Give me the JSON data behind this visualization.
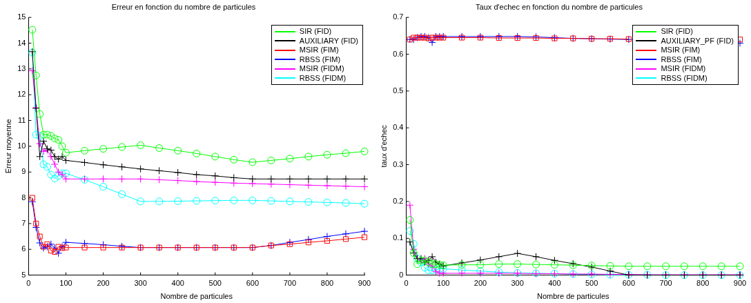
{
  "chart_data": [
    {
      "type": "line",
      "title": "Erreur en fonction du nombre de particules",
      "xlabel": "Nombre de particules",
      "ylabel": "Erreur moyenne",
      "x": [
        10,
        20,
        30,
        40,
        50,
        60,
        70,
        80,
        90,
        100,
        150,
        200,
        250,
        300,
        350,
        400,
        450,
        500,
        550,
        600,
        650,
        700,
        750,
        800,
        850,
        900
      ],
      "xlim": [
        0,
        900
      ],
      "xticks": [
        0,
        100,
        200,
        300,
        400,
        500,
        600,
        700,
        800,
        900
      ],
      "ylim": [
        5,
        15
      ],
      "yticks": [
        5,
        6,
        7,
        8,
        9,
        10,
        11,
        12,
        13,
        14,
        15
      ],
      "grid": false,
      "legend": "top right",
      "line_style": "solid",
      "series": [
        {
          "name": "SIR (FID)",
          "color": "#00ff00",
          "marker": "circle",
          "values": [
            14.52,
            12.75,
            11.25,
            10.45,
            10.45,
            10.4,
            10.3,
            10.25,
            10.0,
            9.75,
            9.83,
            9.9,
            9.97,
            10.04,
            9.93,
            9.83,
            9.72,
            9.6,
            9.48,
            9.38,
            9.45,
            9.52,
            9.6,
            9.67,
            9.73,
            9.8
          ]
        },
        {
          "name": "AUXILIARY (FID)",
          "color": "#000000",
          "marker": "cross",
          "values": [
            13.67,
            11.47,
            9.6,
            10.2,
            9.9,
            9.85,
            9.6,
            9.5,
            9.6,
            9.45,
            9.37,
            9.28,
            9.2,
            9.12,
            9.05,
            8.98,
            8.9,
            8.85,
            8.78,
            8.73,
            8.73,
            8.73,
            8.73,
            8.73,
            8.73,
            8.73
          ]
        },
        {
          "name": "MSIR (FIM)",
          "color": "#ff0000",
          "marker": "square",
          "values": [
            8.0,
            7.0,
            6.5,
            6.1,
            6.2,
            5.95,
            5.9,
            6.1,
            6.05,
            6.07,
            6.07,
            6.07,
            6.07,
            6.07,
            6.07,
            6.07,
            6.07,
            6.07,
            6.07,
            6.07,
            6.15,
            6.2,
            6.27,
            6.33,
            6.4,
            6.47
          ]
        },
        {
          "name": "RBSS (FIM)",
          "color": "#0000ff",
          "marker": "cross",
          "values": [
            7.85,
            6.85,
            6.25,
            6.05,
            6.1,
            6.2,
            6.05,
            5.85,
            6.1,
            6.27,
            6.23,
            6.18,
            6.12,
            6.07,
            6.07,
            6.07,
            6.07,
            6.07,
            6.07,
            6.07,
            6.15,
            6.27,
            6.38,
            6.5,
            6.6,
            6.7
          ]
        },
        {
          "name": "MSIR (FIDM)",
          "color": "#ff00ff",
          "marker": "cross",
          "values": [
            12.93,
            11.5,
            10.1,
            9.8,
            9.85,
            9.6,
            9.3,
            9.0,
            8.9,
            8.73,
            8.73,
            8.73,
            8.73,
            8.73,
            8.7,
            8.67,
            8.63,
            8.6,
            8.57,
            8.55,
            8.53,
            8.51,
            8.49,
            8.47,
            8.45,
            8.43
          ]
        },
        {
          "name": "RBSS (FIDM)",
          "color": "#00ffff",
          "marker": "circle",
          "values": [
            13.63,
            10.45,
            10.4,
            9.3,
            9.2,
            8.9,
            8.75,
            8.85,
            8.95,
            8.95,
            8.7,
            8.43,
            8.14,
            7.86,
            7.86,
            7.87,
            7.88,
            7.89,
            7.9,
            7.9,
            7.88,
            7.86,
            7.84,
            7.82,
            7.8,
            7.77
          ]
        }
      ]
    },
    {
      "type": "line",
      "title": "Taux d'echec en fonction du nombre de particules",
      "xlabel": "Nombre de particules",
      "ylabel": "taux d'echec",
      "x": [
        10,
        20,
        30,
        40,
        50,
        60,
        70,
        80,
        90,
        100,
        150,
        200,
        250,
        300,
        350,
        400,
        450,
        500,
        550,
        600,
        650,
        700,
        750,
        800,
        850,
        900
      ],
      "xlim": [
        0,
        900
      ],
      "xticks": [
        0,
        100,
        200,
        300,
        400,
        500,
        600,
        700,
        800,
        900
      ],
      "ylim": [
        0,
        0.7
      ],
      "yticks": [
        0,
        0.1,
        0.2,
        0.3,
        0.4,
        0.5,
        0.6,
        0.7
      ],
      "grid": false,
      "legend": "top right",
      "line_style": "solid",
      "series": [
        {
          "name": "SIR (FID)",
          "color": "#00ff00",
          "marker": "circle",
          "values": [
            0.15,
            0.06,
            0.03,
            0.04,
            0.04,
            0.035,
            0.03,
            0.03,
            0.028,
            0.027,
            0.028,
            0.028,
            0.03,
            0.03,
            0.029,
            0.028,
            0.027,
            0.026,
            0.025,
            0.024,
            0.024,
            0.024,
            0.024,
            0.024,
            0.024,
            0.024
          ]
        },
        {
          "name": "AUXILIARY_PF (FID)",
          "color": "#000000",
          "marker": "cross",
          "values": [
            0.09,
            0.06,
            0.045,
            0.045,
            0.035,
            0.04,
            0.05,
            0.035,
            0.03,
            0.025,
            0.033,
            0.041,
            0.05,
            0.059,
            0.05,
            0.04,
            0.031,
            0.022,
            0.011,
            0,
            0,
            0,
            0,
            0,
            0,
            0
          ]
        },
        {
          "name": "MSIR (FIM)",
          "color": "#ff0000",
          "marker": "square",
          "values": [
            0.64,
            0.645,
            0.645,
            0.645,
            0.645,
            0.643,
            0.645,
            0.645,
            0.645,
            0.645,
            0.645,
            0.645,
            0.644,
            0.644,
            0.644,
            0.643,
            0.643,
            0.642,
            0.642,
            0.641,
            null,
            null,
            null,
            null,
            null,
            0.64
          ]
        },
        {
          "name": "RBSS (FIM)",
          "color": "#0000ff",
          "marker": "cross",
          "values": [
            0.64,
            0.64,
            0.645,
            0.648,
            0.648,
            0.645,
            0.632,
            0.648,
            0.648,
            0.648,
            0.648,
            0.648,
            0.648,
            0.648,
            0.647,
            0.645,
            0.643,
            0.642,
            0.641,
            0.64,
            null,
            null,
            null,
            null,
            null,
            0.63
          ]
        },
        {
          "name": "MSIR (FIDM)",
          "color": "#ff00ff",
          "marker": "cross",
          "values": [
            0.19,
            0.07,
            0.045,
            0.04,
            0.045,
            0.03,
            0.025,
            0.01,
            0.005,
            0.005,
            0.005,
            0.005,
            0.005,
            0.005,
            0.004,
            0.004,
            0.003,
            0.003,
            0.002,
            0.002,
            0.001,
            0.001,
            0.001,
            0.001,
            0.001,
            0.001
          ]
        },
        {
          "name": "RBSS (FIDM)",
          "color": "#00ffff",
          "marker": "circle",
          "values": [
            0.12,
            0.085,
            0.045,
            0.035,
            0.02,
            0.013,
            0.013,
            0.015,
            0.017,
            0.017,
            0.014,
            0.011,
            0.008,
            0.006,
            0.005,
            0.004,
            0.003,
            0.002,
            0.001,
            0.001,
            0.001,
            0,
            0,
            0,
            0,
            0
          ]
        }
      ]
    }
  ]
}
